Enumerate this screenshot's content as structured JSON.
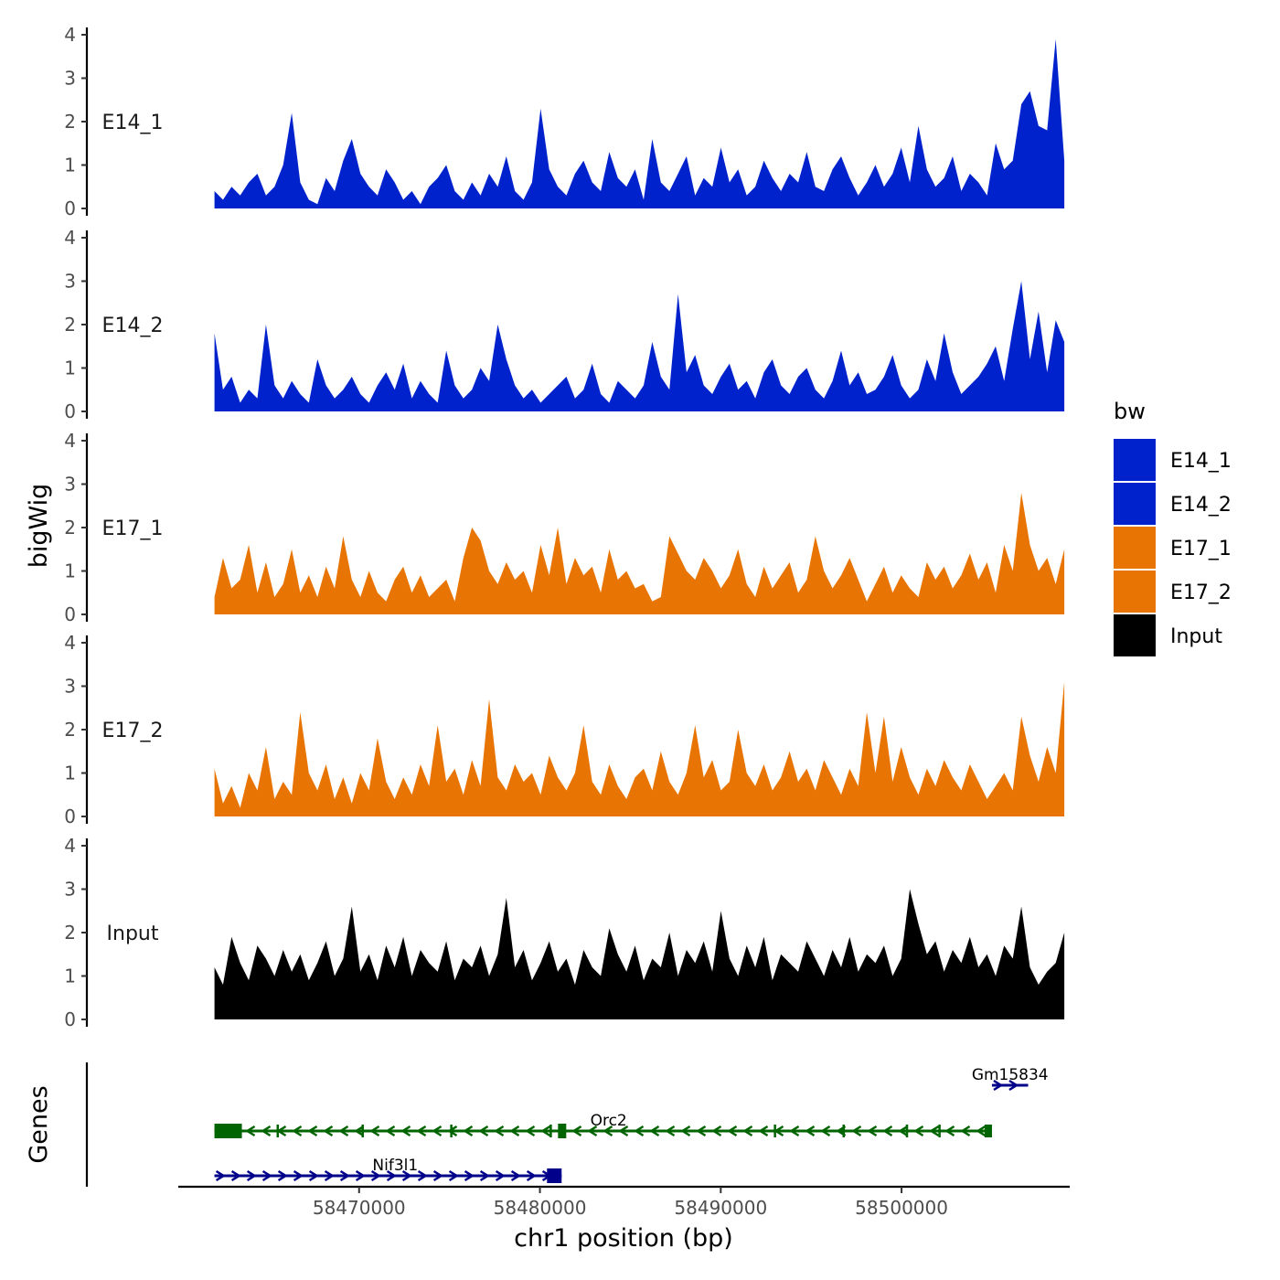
{
  "chart_data": {
    "type": "area",
    "title": "",
    "ylabel": "bigWig",
    "xlabel": "chr1 position (bp)",
    "x_range": [
      58462000,
      58509000
    ],
    "xlim": [
      58460000,
      58509300
    ],
    "x_ticks": [
      58470000,
      58480000,
      58490000,
      58500000
    ],
    "x_tick_labels": [
      "58470000",
      "58480000",
      "58490000",
      "58500000"
    ],
    "ylim": [
      0,
      4
    ],
    "y_ticks": [
      0,
      1,
      2,
      3,
      4
    ],
    "y_tick_labels": [
      "0",
      "1",
      "2",
      "3",
      "4"
    ],
    "legend": {
      "title": "bw",
      "position": "right",
      "entries": [
        {
          "label": "E14_1",
          "color": "#0022CC"
        },
        {
          "label": "E14_2",
          "color": "#0022CC"
        },
        {
          "label": "E17_1",
          "color": "#E87503"
        },
        {
          "label": "E17_2",
          "color": "#E87503"
        },
        {
          "label": "Input",
          "color": "#000000"
        }
      ]
    },
    "series": [
      {
        "name": "E14_1",
        "color": "#0022CC",
        "values": [
          0.4,
          0.2,
          0.5,
          0.3,
          0.6,
          0.8,
          0.3,
          0.5,
          1.0,
          2.2,
          0.6,
          0.2,
          0.1,
          0.7,
          0.4,
          1.1,
          1.6,
          0.8,
          0.5,
          0.3,
          0.9,
          0.6,
          0.2,
          0.4,
          0.1,
          0.5,
          0.7,
          1.0,
          0.4,
          0.2,
          0.6,
          0.3,
          0.8,
          0.5,
          1.2,
          0.4,
          0.2,
          0.6,
          2.3,
          0.9,
          0.5,
          0.3,
          0.8,
          1.1,
          0.6,
          0.4,
          1.3,
          0.7,
          0.5,
          0.9,
          0.2,
          1.6,
          0.6,
          0.4,
          0.8,
          1.2,
          0.3,
          0.7,
          0.5,
          1.4,
          0.6,
          0.9,
          0.3,
          0.5,
          1.1,
          0.7,
          0.4,
          0.8,
          0.6,
          1.3,
          0.5,
          0.4,
          0.9,
          1.2,
          0.7,
          0.3,
          0.6,
          1.0,
          0.5,
          0.8,
          1.4,
          0.6,
          1.9,
          0.9,
          0.5,
          0.7,
          1.2,
          0.4,
          0.8,
          0.6,
          0.3,
          1.5,
          0.9,
          1.1,
          2.4,
          2.7,
          1.9,
          1.8,
          3.9,
          1.1
        ]
      },
      {
        "name": "E14_2",
        "color": "#0022CC",
        "values": [
          1.8,
          0.5,
          0.8,
          0.2,
          0.5,
          0.3,
          2.0,
          0.6,
          0.3,
          0.7,
          0.4,
          0.2,
          1.2,
          0.6,
          0.3,
          0.5,
          0.8,
          0.4,
          0.2,
          0.6,
          0.9,
          0.5,
          1.1,
          0.3,
          0.7,
          0.4,
          0.2,
          1.4,
          0.6,
          0.3,
          0.5,
          1.0,
          0.7,
          2.0,
          1.2,
          0.6,
          0.3,
          0.5,
          0.2,
          0.4,
          0.6,
          0.8,
          0.3,
          0.5,
          1.1,
          0.4,
          0.2,
          0.7,
          0.5,
          0.3,
          0.6,
          1.6,
          0.8,
          0.5,
          2.7,
          0.9,
          1.3,
          0.6,
          0.4,
          0.8,
          1.1,
          0.5,
          0.7,
          0.3,
          0.9,
          1.2,
          0.6,
          0.4,
          0.8,
          1.0,
          0.5,
          0.3,
          0.7,
          1.4,
          0.6,
          0.9,
          0.4,
          0.5,
          0.8,
          1.3,
          0.6,
          0.3,
          0.5,
          1.2,
          0.7,
          1.8,
          0.9,
          0.4,
          0.6,
          0.8,
          1.1,
          1.5,
          0.7,
          1.9,
          3.0,
          1.2,
          2.3,
          0.9,
          2.1,
          1.6
        ]
      },
      {
        "name": "E17_1",
        "color": "#E87503",
        "values": [
          0.4,
          1.3,
          0.6,
          0.8,
          1.6,
          0.5,
          1.2,
          0.4,
          0.7,
          1.5,
          0.5,
          0.9,
          0.4,
          1.1,
          0.6,
          1.8,
          0.8,
          0.4,
          1.0,
          0.5,
          0.3,
          0.8,
          1.1,
          0.5,
          0.9,
          0.4,
          0.6,
          0.8,
          0.3,
          1.3,
          2.0,
          1.7,
          1.0,
          0.7,
          1.2,
          0.8,
          1.0,
          0.5,
          1.6,
          0.9,
          2.0,
          0.7,
          1.3,
          0.9,
          1.1,
          0.5,
          1.5,
          0.8,
          1.0,
          0.6,
          0.7,
          0.3,
          0.4,
          1.8,
          1.4,
          1.0,
          0.8,
          1.3,
          1.0,
          0.6,
          0.9,
          1.5,
          0.7,
          0.4,
          1.1,
          0.6,
          0.9,
          1.2,
          0.5,
          0.8,
          1.8,
          1.0,
          0.6,
          0.9,
          1.3,
          0.8,
          0.3,
          0.7,
          1.1,
          0.5,
          0.9,
          0.6,
          0.4,
          1.2,
          0.8,
          1.1,
          0.6,
          0.9,
          1.4,
          0.8,
          1.2,
          0.5,
          1.6,
          1.0,
          2.8,
          1.6,
          1.0,
          1.3,
          0.7,
          1.5
        ]
      },
      {
        "name": "E17_2",
        "color": "#E87503",
        "values": [
          1.1,
          0.3,
          0.7,
          0.2,
          1.0,
          0.6,
          1.6,
          0.4,
          0.8,
          0.5,
          2.4,
          1.0,
          0.6,
          1.2,
          0.4,
          0.9,
          0.3,
          1.0,
          0.6,
          1.8,
          0.8,
          0.4,
          0.9,
          0.5,
          1.2,
          0.7,
          2.1,
          0.8,
          1.1,
          0.5,
          1.3,
          0.7,
          2.7,
          0.9,
          0.6,
          1.2,
          0.8,
          1.0,
          0.5,
          1.4,
          0.9,
          0.6,
          1.0,
          2.1,
          0.8,
          0.5,
          1.2,
          0.7,
          0.4,
          0.9,
          1.1,
          0.6,
          1.5,
          0.8,
          0.5,
          1.0,
          2.1,
          0.9,
          1.3,
          0.6,
          0.8,
          2.0,
          1.0,
          0.7,
          1.2,
          0.6,
          0.9,
          1.5,
          0.8,
          1.1,
          0.6,
          1.3,
          0.9,
          0.5,
          1.1,
          0.7,
          2.4,
          1.0,
          2.3,
          0.8,
          1.6,
          0.9,
          0.5,
          1.1,
          0.7,
          1.3,
          0.9,
          0.6,
          1.2,
          0.8,
          0.4,
          0.7,
          1.0,
          0.6,
          2.3,
          1.4,
          0.8,
          1.6,
          1.0,
          3.1
        ]
      },
      {
        "name": "Input",
        "color": "#000000",
        "values": [
          1.2,
          0.8,
          1.9,
          1.3,
          0.9,
          1.7,
          1.4,
          1.0,
          1.6,
          1.1,
          1.5,
          0.9,
          1.3,
          1.8,
          1.0,
          1.4,
          2.6,
          1.1,
          1.5,
          0.9,
          1.7,
          1.2,
          1.9,
          1.0,
          1.6,
          1.3,
          1.1,
          1.8,
          0.9,
          1.4,
          1.2,
          1.7,
          1.0,
          1.5,
          2.8,
          1.2,
          1.6,
          0.9,
          1.3,
          1.8,
          1.1,
          1.4,
          0.8,
          1.6,
          1.2,
          1.0,
          2.1,
          1.5,
          1.1,
          1.7,
          0.9,
          1.4,
          1.2,
          2.0,
          1.0,
          1.6,
          1.3,
          1.8,
          1.1,
          2.5,
          1.4,
          1.0,
          1.7,
          1.2,
          1.9,
          0.9,
          1.5,
          1.3,
          1.1,
          1.8,
          1.4,
          1.0,
          1.6,
          1.2,
          1.9,
          1.1,
          1.5,
          1.3,
          1.7,
          1.0,
          1.4,
          3.0,
          2.2,
          1.5,
          1.8,
          1.1,
          1.6,
          1.3,
          1.9,
          1.2,
          1.5,
          1.0,
          1.7,
          1.4,
          2.6,
          1.2,
          0.8,
          1.1,
          1.3,
          2.0
        ]
      }
    ],
    "genes": {
      "label": "Genes",
      "items": [
        {
          "name": "Gm15834",
          "start": 58505000,
          "end": 58507000,
          "strand": "+",
          "color": "#00008B",
          "row": 0
        },
        {
          "name": "Orc2",
          "start": 58462000,
          "end": 58505000,
          "strand": "-",
          "color": "#006400",
          "row": 1
        },
        {
          "name": "Nif3l1",
          "start": 58462000,
          "end": 58481200,
          "strand": "+",
          "color": "#00008B",
          "row": 2
        }
      ]
    }
  }
}
